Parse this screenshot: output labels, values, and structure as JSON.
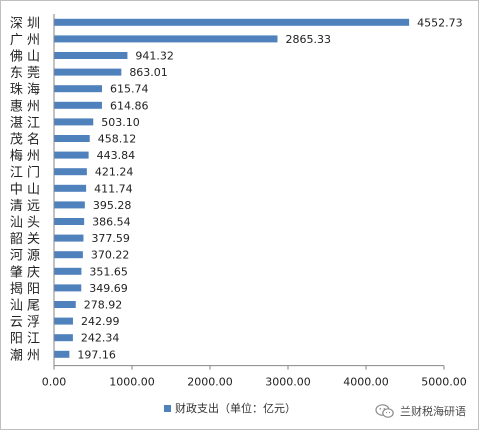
{
  "chart_data": {
    "type": "bar",
    "orientation": "horizontal",
    "categories": [
      "深 圳",
      "广 州",
      "佛 山",
      "东 莞",
      "珠 海",
      "惠 州",
      "湛 江",
      "茂 名",
      "梅 州",
      "江 门",
      "中 山",
      "清 远",
      "汕 头",
      "韶 关",
      "河 源",
      "肇 庆",
      "揭 阳",
      "汕 尾",
      "云 浮",
      "阳 江",
      "潮 州"
    ],
    "series": [
      {
        "name": "财政支出（单位：亿元）",
        "values": [
          4552.73,
          2865.33,
          941.32,
          863.01,
          615.74,
          614.86,
          503.1,
          458.12,
          443.84,
          421.24,
          411.74,
          395.28,
          386.54,
          377.59,
          370.22,
          351.65,
          349.69,
          278.92,
          242.99,
          242.34,
          197.16
        ],
        "value_labels": [
          "4552.73",
          "2865.33",
          "941.32",
          "863.01",
          "615.74",
          "614.86",
          "503.10",
          "458.12",
          "443.84",
          "421.24",
          "411.74",
          "395.28",
          "386.54",
          "377.59",
          "370.22",
          "351.65",
          "349.69",
          "278.92",
          "242.99",
          "242.34",
          "197.16"
        ],
        "color": "#4f81bd"
      }
    ],
    "xlim": [
      0,
      5000
    ],
    "x_ticks": [
      0,
      1000,
      2000,
      3000,
      4000,
      5000
    ],
    "x_tick_labels": [
      "0.00",
      "1000.00",
      "2000.00",
      "3000.00",
      "4000.00",
      "5000.00"
    ],
    "title": "",
    "xlabel": "",
    "ylabel": "",
    "grid": false,
    "legend_position": "bottom"
  },
  "watermark": {
    "text": "兰财税海研语",
    "icon": "wechat-logo-icon"
  }
}
